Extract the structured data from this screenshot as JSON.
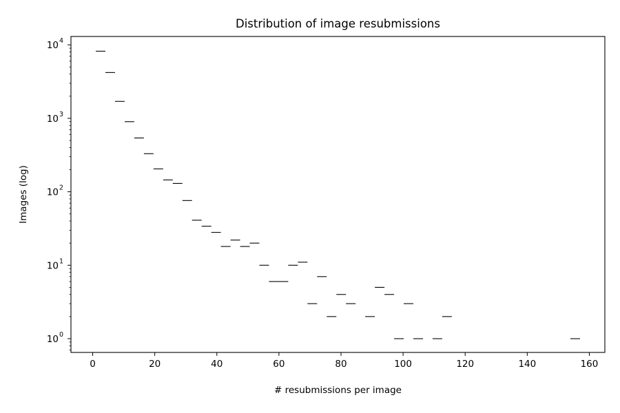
{
  "chart_data": {
    "type": "bar",
    "title": "Distribution of image resubmissions",
    "xlabel": "# resubmissions per image",
    "ylabel": "Images (log)",
    "x_scale": "linear",
    "y_scale": "log",
    "xlim": [
      -7,
      165
    ],
    "ylim": [
      0.65,
      13000
    ],
    "x_ticks": [
      0,
      20,
      40,
      60,
      80,
      100,
      120,
      140,
      160
    ],
    "x_tick_labels": [
      "0",
      "20",
      "40",
      "60",
      "80",
      "100",
      "120",
      "140",
      "160"
    ],
    "y_ticks": [
      1,
      10,
      100,
      1000,
      10000
    ],
    "y_tick_labels": [
      {
        "base": "10",
        "exp": "0"
      },
      {
        "base": "10",
        "exp": "1"
      },
      {
        "base": "10",
        "exp": "2"
      },
      {
        "base": "10",
        "exp": "3"
      },
      {
        "base": "10",
        "exp": "4"
      }
    ],
    "grid": false,
    "legend": "none",
    "bin_width": 3.1,
    "series": [
      {
        "style": "step-tops",
        "color": "#000000",
        "bin_starts": [
          1.0,
          4.1,
          7.2,
          10.3,
          13.4,
          16.5,
          19.6,
          22.7,
          25.8,
          28.9,
          32.0,
          35.1,
          38.2,
          41.3,
          44.4,
          47.5,
          50.6,
          53.7,
          56.8,
          59.9,
          63.0,
          66.1,
          69.2,
          72.3,
          75.4,
          78.5,
          81.6,
          87.8,
          90.9,
          94.0,
          97.1,
          100.2,
          103.3,
          109.5,
          112.6,
          153.9
        ],
        "values": [
          8200,
          4200,
          1700,
          900,
          540,
          330,
          205,
          145,
          130,
          76,
          41,
          34,
          28,
          18,
          22,
          18,
          20,
          10,
          6,
          6,
          10,
          11,
          3,
          7,
          2,
          4,
          3,
          2,
          5,
          4,
          1,
          3,
          1,
          1,
          2,
          1
        ]
      }
    ]
  }
}
